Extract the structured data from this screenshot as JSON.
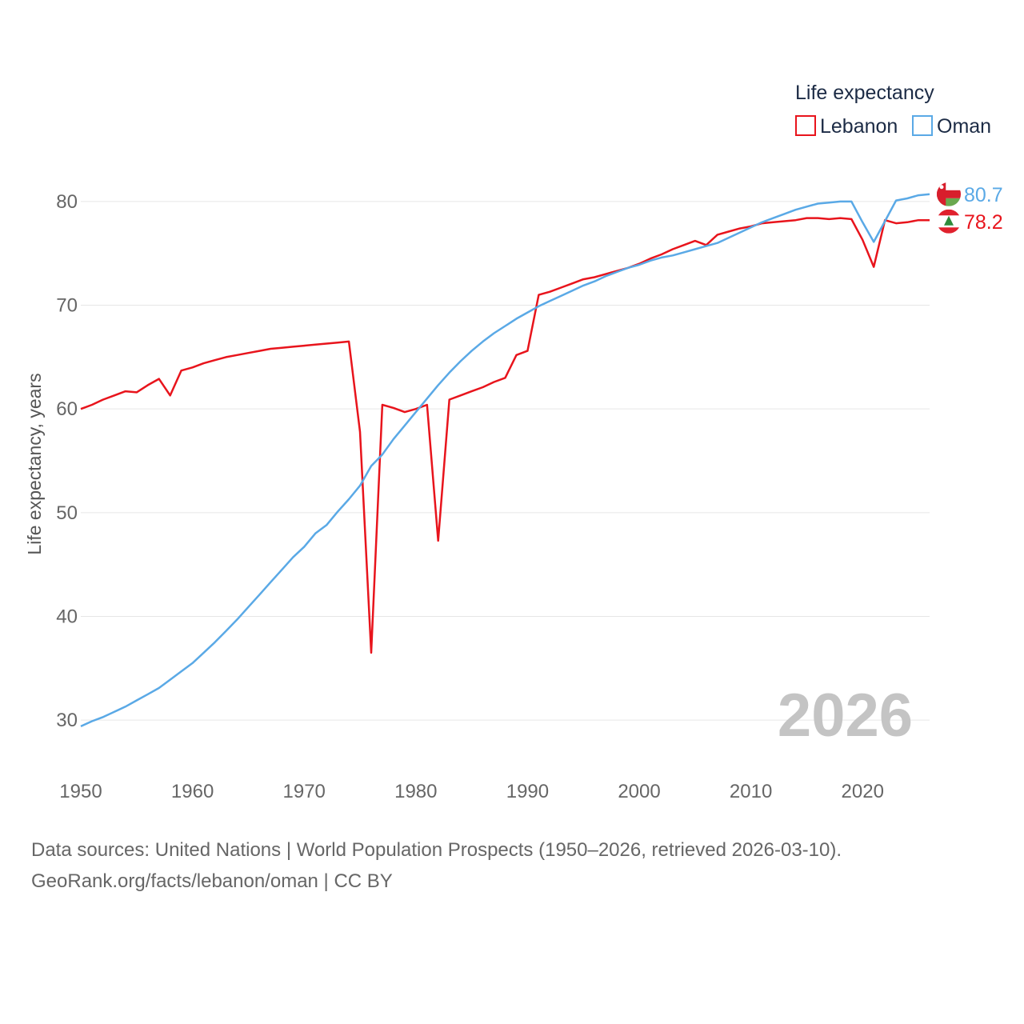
{
  "chart_data": {
    "type": "line",
    "title": "",
    "ylabel": "Life expectancy, years",
    "xlabel": "",
    "xlim": [
      1950,
      2026
    ],
    "ylim": [
      25,
      84
    ],
    "x_ticks": [
      1950,
      1960,
      1970,
      1980,
      1990,
      2000,
      2010,
      2020
    ],
    "y_ticks": [
      30,
      40,
      50,
      60,
      70,
      80
    ],
    "grid": true,
    "legend": {
      "title": "Life expectancy",
      "placement": "top-right"
    },
    "current_year": "2026",
    "series": [
      {
        "name": "Lebanon",
        "color": "#e8141c",
        "end_label": "78.2",
        "flag_icon": "lebanon-flag-icon",
        "x": [
          1950,
          1951,
          1952,
          1953,
          1954,
          1955,
          1956,
          1957,
          1958,
          1959,
          1960,
          1961,
          1962,
          1963,
          1964,
          1965,
          1966,
          1967,
          1968,
          1969,
          1970,
          1971,
          1972,
          1973,
          1974,
          1975,
          1976,
          1977,
          1978,
          1979,
          1980,
          1981,
          1982,
          1983,
          1984,
          1985,
          1986,
          1987,
          1988,
          1989,
          1990,
          1991,
          1992,
          1993,
          1994,
          1995,
          1996,
          1997,
          1998,
          1999,
          2000,
          2001,
          2002,
          2003,
          2004,
          2005,
          2006,
          2007,
          2008,
          2009,
          2010,
          2011,
          2012,
          2013,
          2014,
          2015,
          2016,
          2017,
          2018,
          2019,
          2020,
          2021,
          2022,
          2023,
          2024,
          2025,
          2026
        ],
        "values": [
          60.0,
          60.4,
          60.9,
          61.3,
          61.7,
          61.6,
          62.3,
          62.9,
          61.3,
          63.7,
          64.0,
          64.4,
          64.7,
          65.0,
          65.2,
          65.4,
          65.6,
          65.8,
          65.9,
          66.0,
          66.1,
          66.2,
          66.3,
          66.4,
          66.5,
          57.8,
          36.5,
          60.4,
          60.1,
          59.7,
          60.0,
          60.4,
          47.3,
          60.9,
          61.3,
          61.7,
          62.1,
          62.6,
          63.0,
          65.2,
          65.6,
          71.0,
          71.3,
          71.7,
          72.1,
          72.5,
          72.7,
          73.0,
          73.3,
          73.6,
          74.0,
          74.5,
          74.9,
          75.4,
          75.8,
          76.2,
          75.8,
          76.8,
          77.1,
          77.4,
          77.6,
          77.9,
          78.0,
          78.1,
          78.2,
          78.4,
          78.4,
          78.3,
          78.4,
          78.3,
          76.3,
          73.7,
          78.2,
          77.9,
          78.0,
          78.2,
          78.2
        ]
      },
      {
        "name": "Oman",
        "color": "#5aa9e6",
        "end_label": "80.7",
        "flag_icon": "oman-flag-icon",
        "x": [
          1950,
          1951,
          1952,
          1953,
          1954,
          1955,
          1956,
          1957,
          1958,
          1959,
          1960,
          1961,
          1962,
          1963,
          1964,
          1965,
          1966,
          1967,
          1968,
          1969,
          1970,
          1971,
          1972,
          1973,
          1974,
          1975,
          1976,
          1977,
          1978,
          1979,
          1980,
          1981,
          1982,
          1983,
          1984,
          1985,
          1986,
          1987,
          1988,
          1989,
          1990,
          1991,
          1992,
          1993,
          1994,
          1995,
          1996,
          1997,
          1998,
          1999,
          2000,
          2001,
          2002,
          2003,
          2004,
          2005,
          2006,
          2007,
          2008,
          2009,
          2010,
          2011,
          2012,
          2013,
          2014,
          2015,
          2016,
          2017,
          2018,
          2019,
          2020,
          2021,
          2022,
          2023,
          2024,
          2025,
          2026
        ],
        "values": [
          29.4,
          29.9,
          30.3,
          30.8,
          31.3,
          31.9,
          32.5,
          33.1,
          33.9,
          34.7,
          35.5,
          36.5,
          37.5,
          38.6,
          39.7,
          40.9,
          42.1,
          43.3,
          44.5,
          45.7,
          46.7,
          48.0,
          48.8,
          50.1,
          51.3,
          52.6,
          54.5,
          55.6,
          57.1,
          58.4,
          59.7,
          61.0,
          62.3,
          63.5,
          64.6,
          65.6,
          66.5,
          67.3,
          68.0,
          68.7,
          69.3,
          69.9,
          70.4,
          70.9,
          71.4,
          71.9,
          72.3,
          72.8,
          73.2,
          73.6,
          73.9,
          74.3,
          74.6,
          74.8,
          75.1,
          75.4,
          75.7,
          76.0,
          76.5,
          77.0,
          77.5,
          78.0,
          78.4,
          78.8,
          79.2,
          79.5,
          79.8,
          79.9,
          80.0,
          80.0,
          78.0,
          76.1,
          78.1,
          80.1,
          80.3,
          80.6,
          80.7
        ]
      }
    ]
  },
  "footer": {
    "line1": "Data sources: United Nations | World Population Prospects (1950–2026, retrieved 2026-03-10).",
    "line2": "GeoRank.org/facts/lebanon/oman | CC BY"
  }
}
